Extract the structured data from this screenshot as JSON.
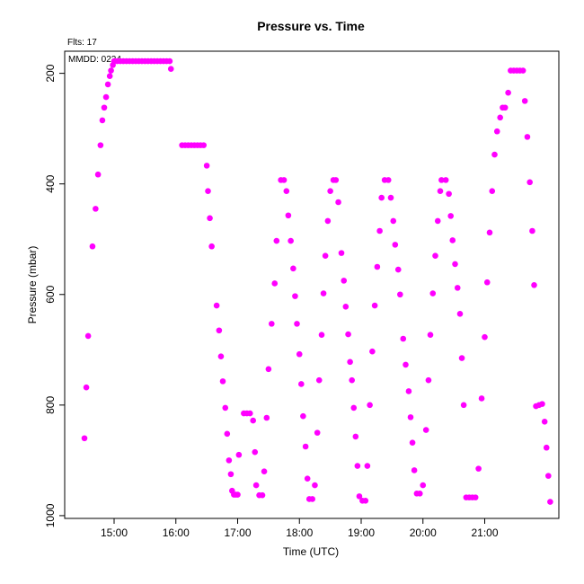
{
  "chart_data": {
    "type": "scatter",
    "title": "Pressure  vs. Time",
    "xlabel": "Time (UTC)",
    "ylabel": "Pressure (mbar)",
    "flights_label": "Flts: 17",
    "mmdd_label": "MMDD: 0224",
    "x_unit": "hours UTC",
    "xlim": [
      14.2,
      22.2
    ],
    "ylim": [
      1005,
      160
    ],
    "y_inverted": true,
    "x_ticks": [
      {
        "value": 15,
        "label": "15:00"
      },
      {
        "value": 16,
        "label": "16:00"
      },
      {
        "value": 17,
        "label": "17:00"
      },
      {
        "value": 18,
        "label": "18:00"
      },
      {
        "value": 19,
        "label": "19:00"
      },
      {
        "value": 20,
        "label": "20:00"
      },
      {
        "value": 21,
        "label": "21:00"
      }
    ],
    "y_ticks": [
      {
        "value": 200,
        "label": "200"
      },
      {
        "value": 400,
        "label": "400"
      },
      {
        "value": 600,
        "label": "600"
      },
      {
        "value": 800,
        "label": "800"
      },
      {
        "value": 1000,
        "label": "1000"
      }
    ],
    "grid": false,
    "marker_color": "#ff00ff",
    "points": [
      [
        14.52,
        860
      ],
      [
        14.55,
        768
      ],
      [
        14.58,
        675
      ],
      [
        14.65,
        513
      ],
      [
        14.7,
        445
      ],
      [
        14.74,
        383
      ],
      [
        14.78,
        330
      ],
      [
        14.81,
        285
      ],
      [
        14.84,
        262
      ],
      [
        14.87,
        243
      ],
      [
        14.9,
        220
      ],
      [
        14.93,
        205
      ],
      [
        14.95,
        195
      ],
      [
        14.98,
        185
      ],
      [
        15.0,
        178
      ],
      [
        15.05,
        178
      ],
      [
        15.1,
        178
      ],
      [
        15.15,
        178
      ],
      [
        15.2,
        178
      ],
      [
        15.25,
        178
      ],
      [
        15.3,
        178
      ],
      [
        15.35,
        178
      ],
      [
        15.4,
        178
      ],
      [
        15.45,
        178
      ],
      [
        15.5,
        178
      ],
      [
        15.55,
        178
      ],
      [
        15.6,
        178
      ],
      [
        15.65,
        178
      ],
      [
        15.7,
        178
      ],
      [
        15.75,
        178
      ],
      [
        15.8,
        178
      ],
      [
        15.85,
        178
      ],
      [
        15.9,
        178
      ],
      [
        15.92,
        192
      ],
      [
        16.1,
        330
      ],
      [
        16.15,
        330
      ],
      [
        16.2,
        330
      ],
      [
        16.25,
        330
      ],
      [
        16.3,
        330
      ],
      [
        16.35,
        330
      ],
      [
        16.4,
        330
      ],
      [
        16.45,
        330
      ],
      [
        16.5,
        367
      ],
      [
        16.52,
        413
      ],
      [
        16.55,
        462
      ],
      [
        16.58,
        513
      ],
      [
        16.66,
        620
      ],
      [
        16.7,
        665
      ],
      [
        16.73,
        712
      ],
      [
        16.76,
        757
      ],
      [
        16.8,
        805
      ],
      [
        16.83,
        852
      ],
      [
        16.86,
        900
      ],
      [
        16.89,
        925
      ],
      [
        16.91,
        955
      ],
      [
        16.94,
        962
      ],
      [
        16.97,
        962
      ],
      [
        17.0,
        962
      ],
      [
        17.02,
        890
      ],
      [
        17.1,
        815
      ],
      [
        17.15,
        815
      ],
      [
        17.2,
        815
      ],
      [
        17.25,
        828
      ],
      [
        17.28,
        885
      ],
      [
        17.3,
        945
      ],
      [
        17.35,
        963
      ],
      [
        17.4,
        963
      ],
      [
        17.43,
        920
      ],
      [
        17.47,
        823
      ],
      [
        17.5,
        735
      ],
      [
        17.55,
        653
      ],
      [
        17.6,
        580
      ],
      [
        17.63,
        503
      ],
      [
        17.7,
        393
      ],
      [
        17.75,
        393
      ],
      [
        17.79,
        413
      ],
      [
        17.82,
        457
      ],
      [
        17.86,
        503
      ],
      [
        17.9,
        553
      ],
      [
        17.93,
        603
      ],
      [
        17.96,
        653
      ],
      [
        18.0,
        708
      ],
      [
        18.03,
        762
      ],
      [
        18.06,
        820
      ],
      [
        18.1,
        875
      ],
      [
        18.13,
        933
      ],
      [
        18.16,
        970
      ],
      [
        18.21,
        970
      ],
      [
        18.25,
        945
      ],
      [
        18.29,
        850
      ],
      [
        18.32,
        755
      ],
      [
        18.36,
        673
      ],
      [
        18.39,
        598
      ],
      [
        18.42,
        530
      ],
      [
        18.46,
        467
      ],
      [
        18.5,
        413
      ],
      [
        18.55,
        393
      ],
      [
        18.59,
        393
      ],
      [
        18.63,
        433
      ],
      [
        18.68,
        525
      ],
      [
        18.72,
        575
      ],
      [
        18.75,
        622
      ],
      [
        18.79,
        672
      ],
      [
        18.82,
        722
      ],
      [
        18.85,
        755
      ],
      [
        18.88,
        805
      ],
      [
        18.91,
        857
      ],
      [
        18.94,
        910
      ],
      [
        18.97,
        965
      ],
      [
        19.02,
        973
      ],
      [
        19.07,
        973
      ],
      [
        19.1,
        910
      ],
      [
        19.14,
        800
      ],
      [
        19.18,
        703
      ],
      [
        19.22,
        620
      ],
      [
        19.26,
        550
      ],
      [
        19.3,
        485
      ],
      [
        19.33,
        425
      ],
      [
        19.38,
        393
      ],
      [
        19.44,
        393
      ],
      [
        19.48,
        425
      ],
      [
        19.52,
        467
      ],
      [
        19.55,
        510
      ],
      [
        19.6,
        555
      ],
      [
        19.63,
        600
      ],
      [
        19.68,
        680
      ],
      [
        19.72,
        727
      ],
      [
        19.77,
        775
      ],
      [
        19.8,
        822
      ],
      [
        19.83,
        868
      ],
      [
        19.86,
        918
      ],
      [
        19.9,
        960
      ],
      [
        19.95,
        960
      ],
      [
        20.0,
        945
      ],
      [
        20.05,
        845
      ],
      [
        20.09,
        755
      ],
      [
        20.12,
        673
      ],
      [
        20.16,
        598
      ],
      [
        20.2,
        530
      ],
      [
        20.24,
        467
      ],
      [
        20.28,
        413
      ],
      [
        20.3,
        393
      ],
      [
        20.37,
        393
      ],
      [
        20.42,
        418
      ],
      [
        20.45,
        458
      ],
      [
        20.48,
        502
      ],
      [
        20.52,
        545
      ],
      [
        20.56,
        588
      ],
      [
        20.6,
        635
      ],
      [
        20.63,
        715
      ],
      [
        20.66,
        800
      ],
      [
        20.7,
        967
      ],
      [
        20.75,
        967
      ],
      [
        20.8,
        967
      ],
      [
        20.85,
        967
      ],
      [
        20.9,
        915
      ],
      [
        20.95,
        788
      ],
      [
        21.0,
        677
      ],
      [
        21.04,
        578
      ],
      [
        21.08,
        488
      ],
      [
        21.12,
        413
      ],
      [
        21.16,
        347
      ],
      [
        21.2,
        305
      ],
      [
        21.25,
        280
      ],
      [
        21.29,
        262
      ],
      [
        21.33,
        262
      ],
      [
        21.38,
        235
      ],
      [
        21.42,
        195
      ],
      [
        21.47,
        195
      ],
      [
        21.52,
        195
      ],
      [
        21.57,
        195
      ],
      [
        21.62,
        195
      ],
      [
        21.65,
        250
      ],
      [
        21.69,
        315
      ],
      [
        21.73,
        397
      ],
      [
        21.77,
        485
      ],
      [
        21.8,
        583
      ],
      [
        21.83,
        802
      ],
      [
        21.88,
        800
      ],
      [
        21.93,
        798
      ],
      [
        21.97,
        830
      ],
      [
        22.0,
        877
      ],
      [
        22.03,
        928
      ],
      [
        22.06,
        975
      ]
    ]
  }
}
